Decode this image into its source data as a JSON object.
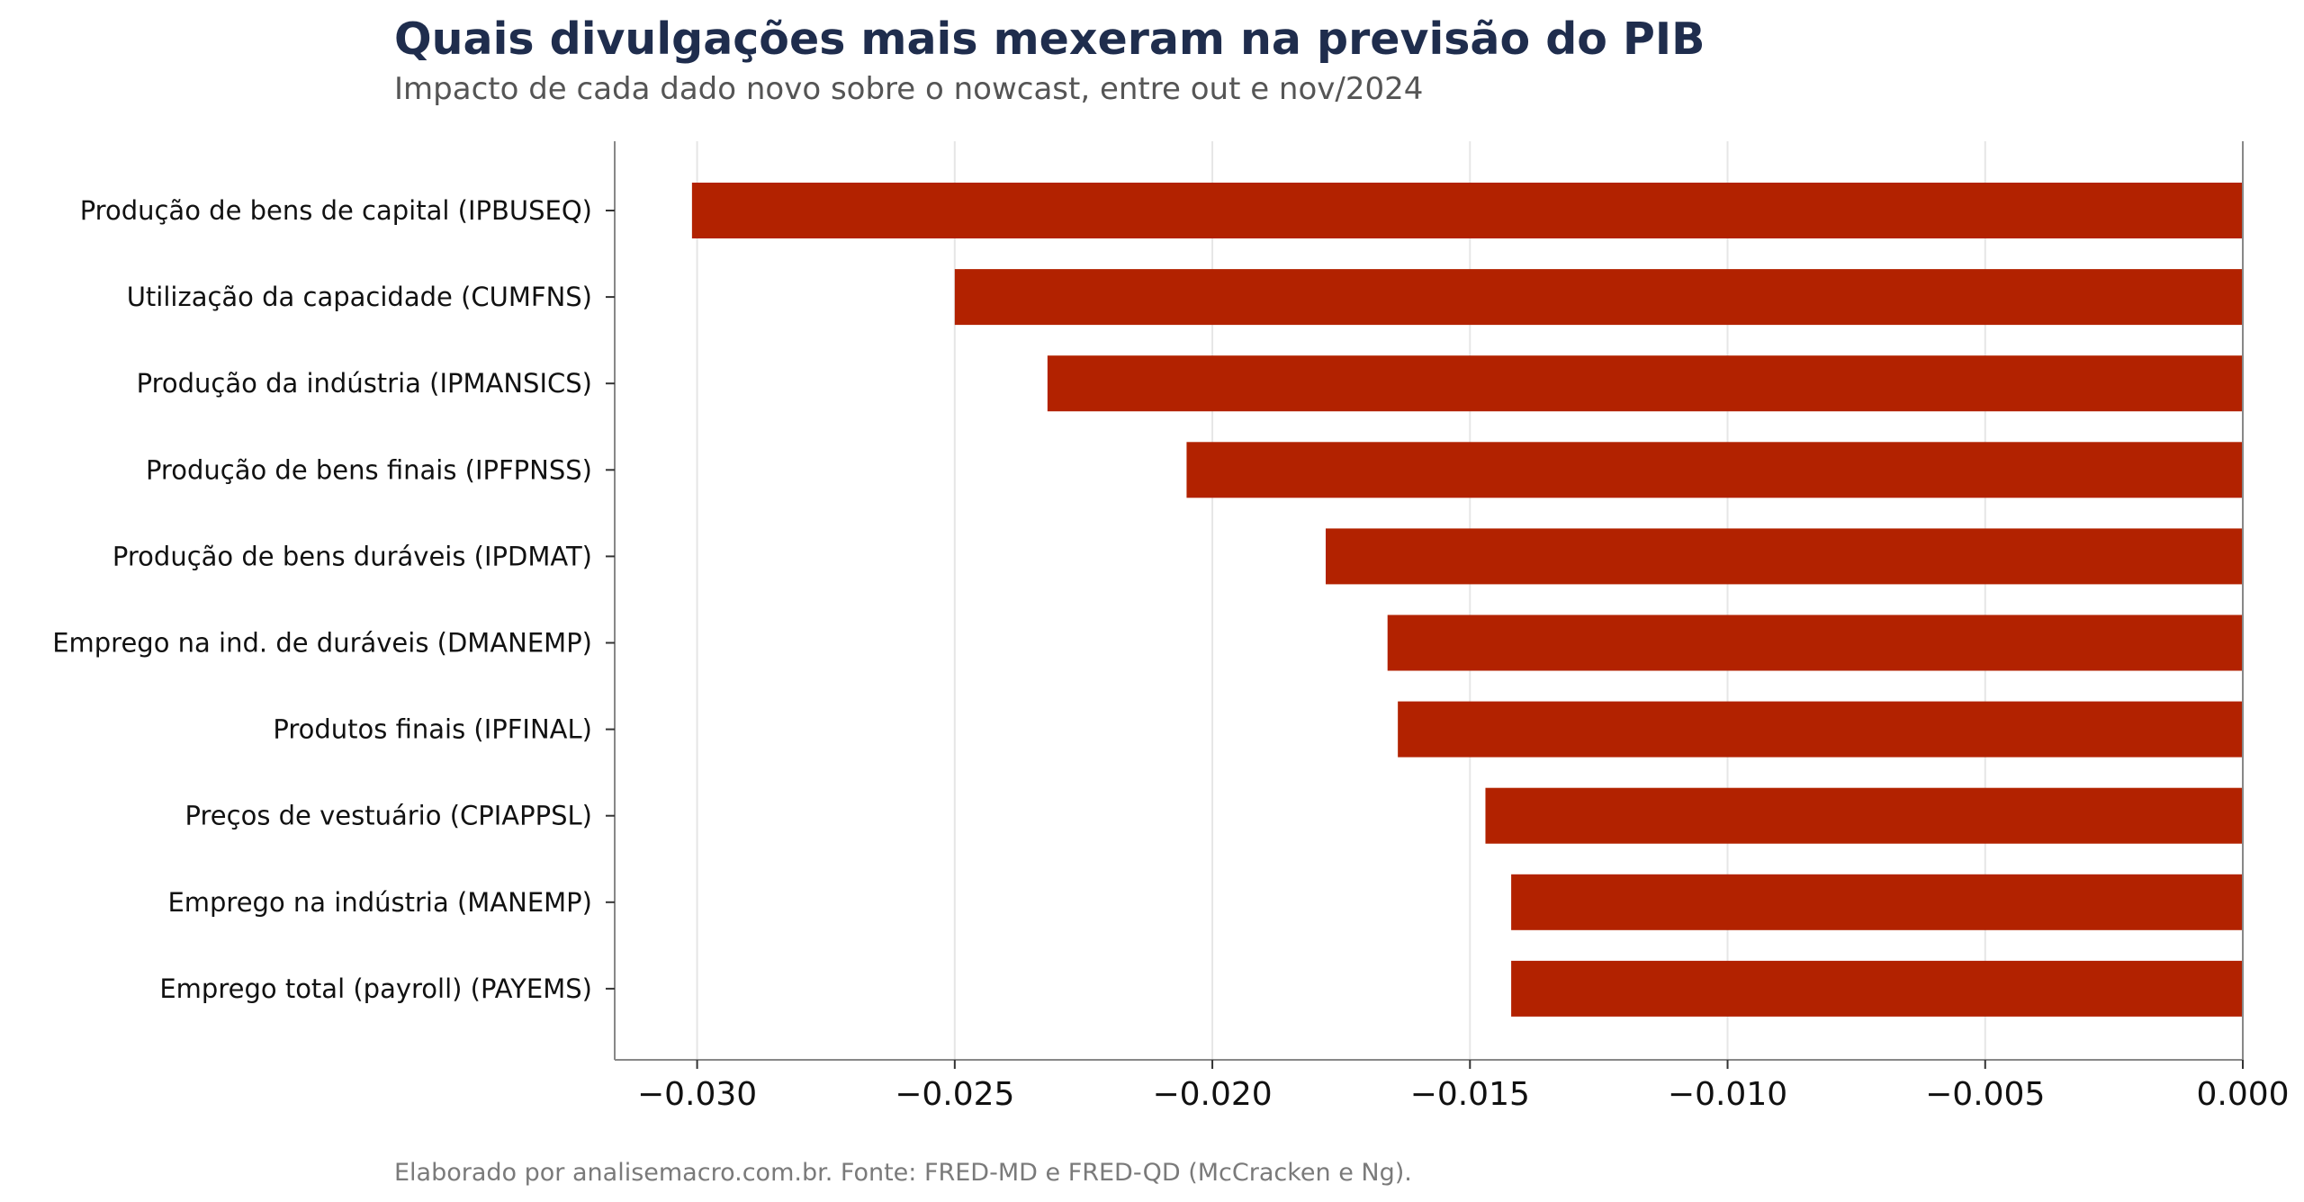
{
  "chart_data": {
    "type": "bar",
    "orientation": "horizontal",
    "title": "Quais divulgações mais mexeram na previsão do PIB",
    "subtitle": "Impacto de cada dado novo sobre o nowcast, entre out e nov/2024",
    "caption": "Elaborado por analisemacro.com.br. Fonte: FRED-MD e FRED-QD (McCracken e Ng).",
    "xlabel": "",
    "ylabel": "",
    "categories": [
      "Produção de bens de capital (IPBUSEQ)",
      "Utilização da capacidade (CUMFNS)",
      "Produção da indústria (IPMANSICS)",
      "Produção de bens finais (IPFPNSS)",
      "Produção de bens duráveis (IPDMAT)",
      "Emprego na ind. de duráveis (DMANEMP)",
      "Produtos finais (IPFINAL)",
      "Preços de vestuário (CPIAPPSL)",
      "Emprego na indústria (MANEMP)",
      "Emprego total (payroll) (PAYEMS)"
    ],
    "values": [
      -0.0301,
      -0.025,
      -0.0232,
      -0.0205,
      -0.0178,
      -0.0166,
      -0.0164,
      -0.0147,
      -0.0142,
      -0.0142
    ],
    "xlim": [
      -0.0316,
      0.0
    ],
    "xticks": [
      -0.03,
      -0.025,
      -0.02,
      -0.015,
      -0.01,
      -0.005,
      0.0
    ],
    "xtick_labels": [
      "−0.030",
      "−0.025",
      "−0.020",
      "−0.015",
      "−0.010",
      "−0.005",
      "0.000"
    ],
    "grid": "vertical",
    "legend": "none",
    "colors": {
      "bar": "#b22200",
      "grid": "#e6e6e6",
      "axis": "#888888"
    }
  }
}
